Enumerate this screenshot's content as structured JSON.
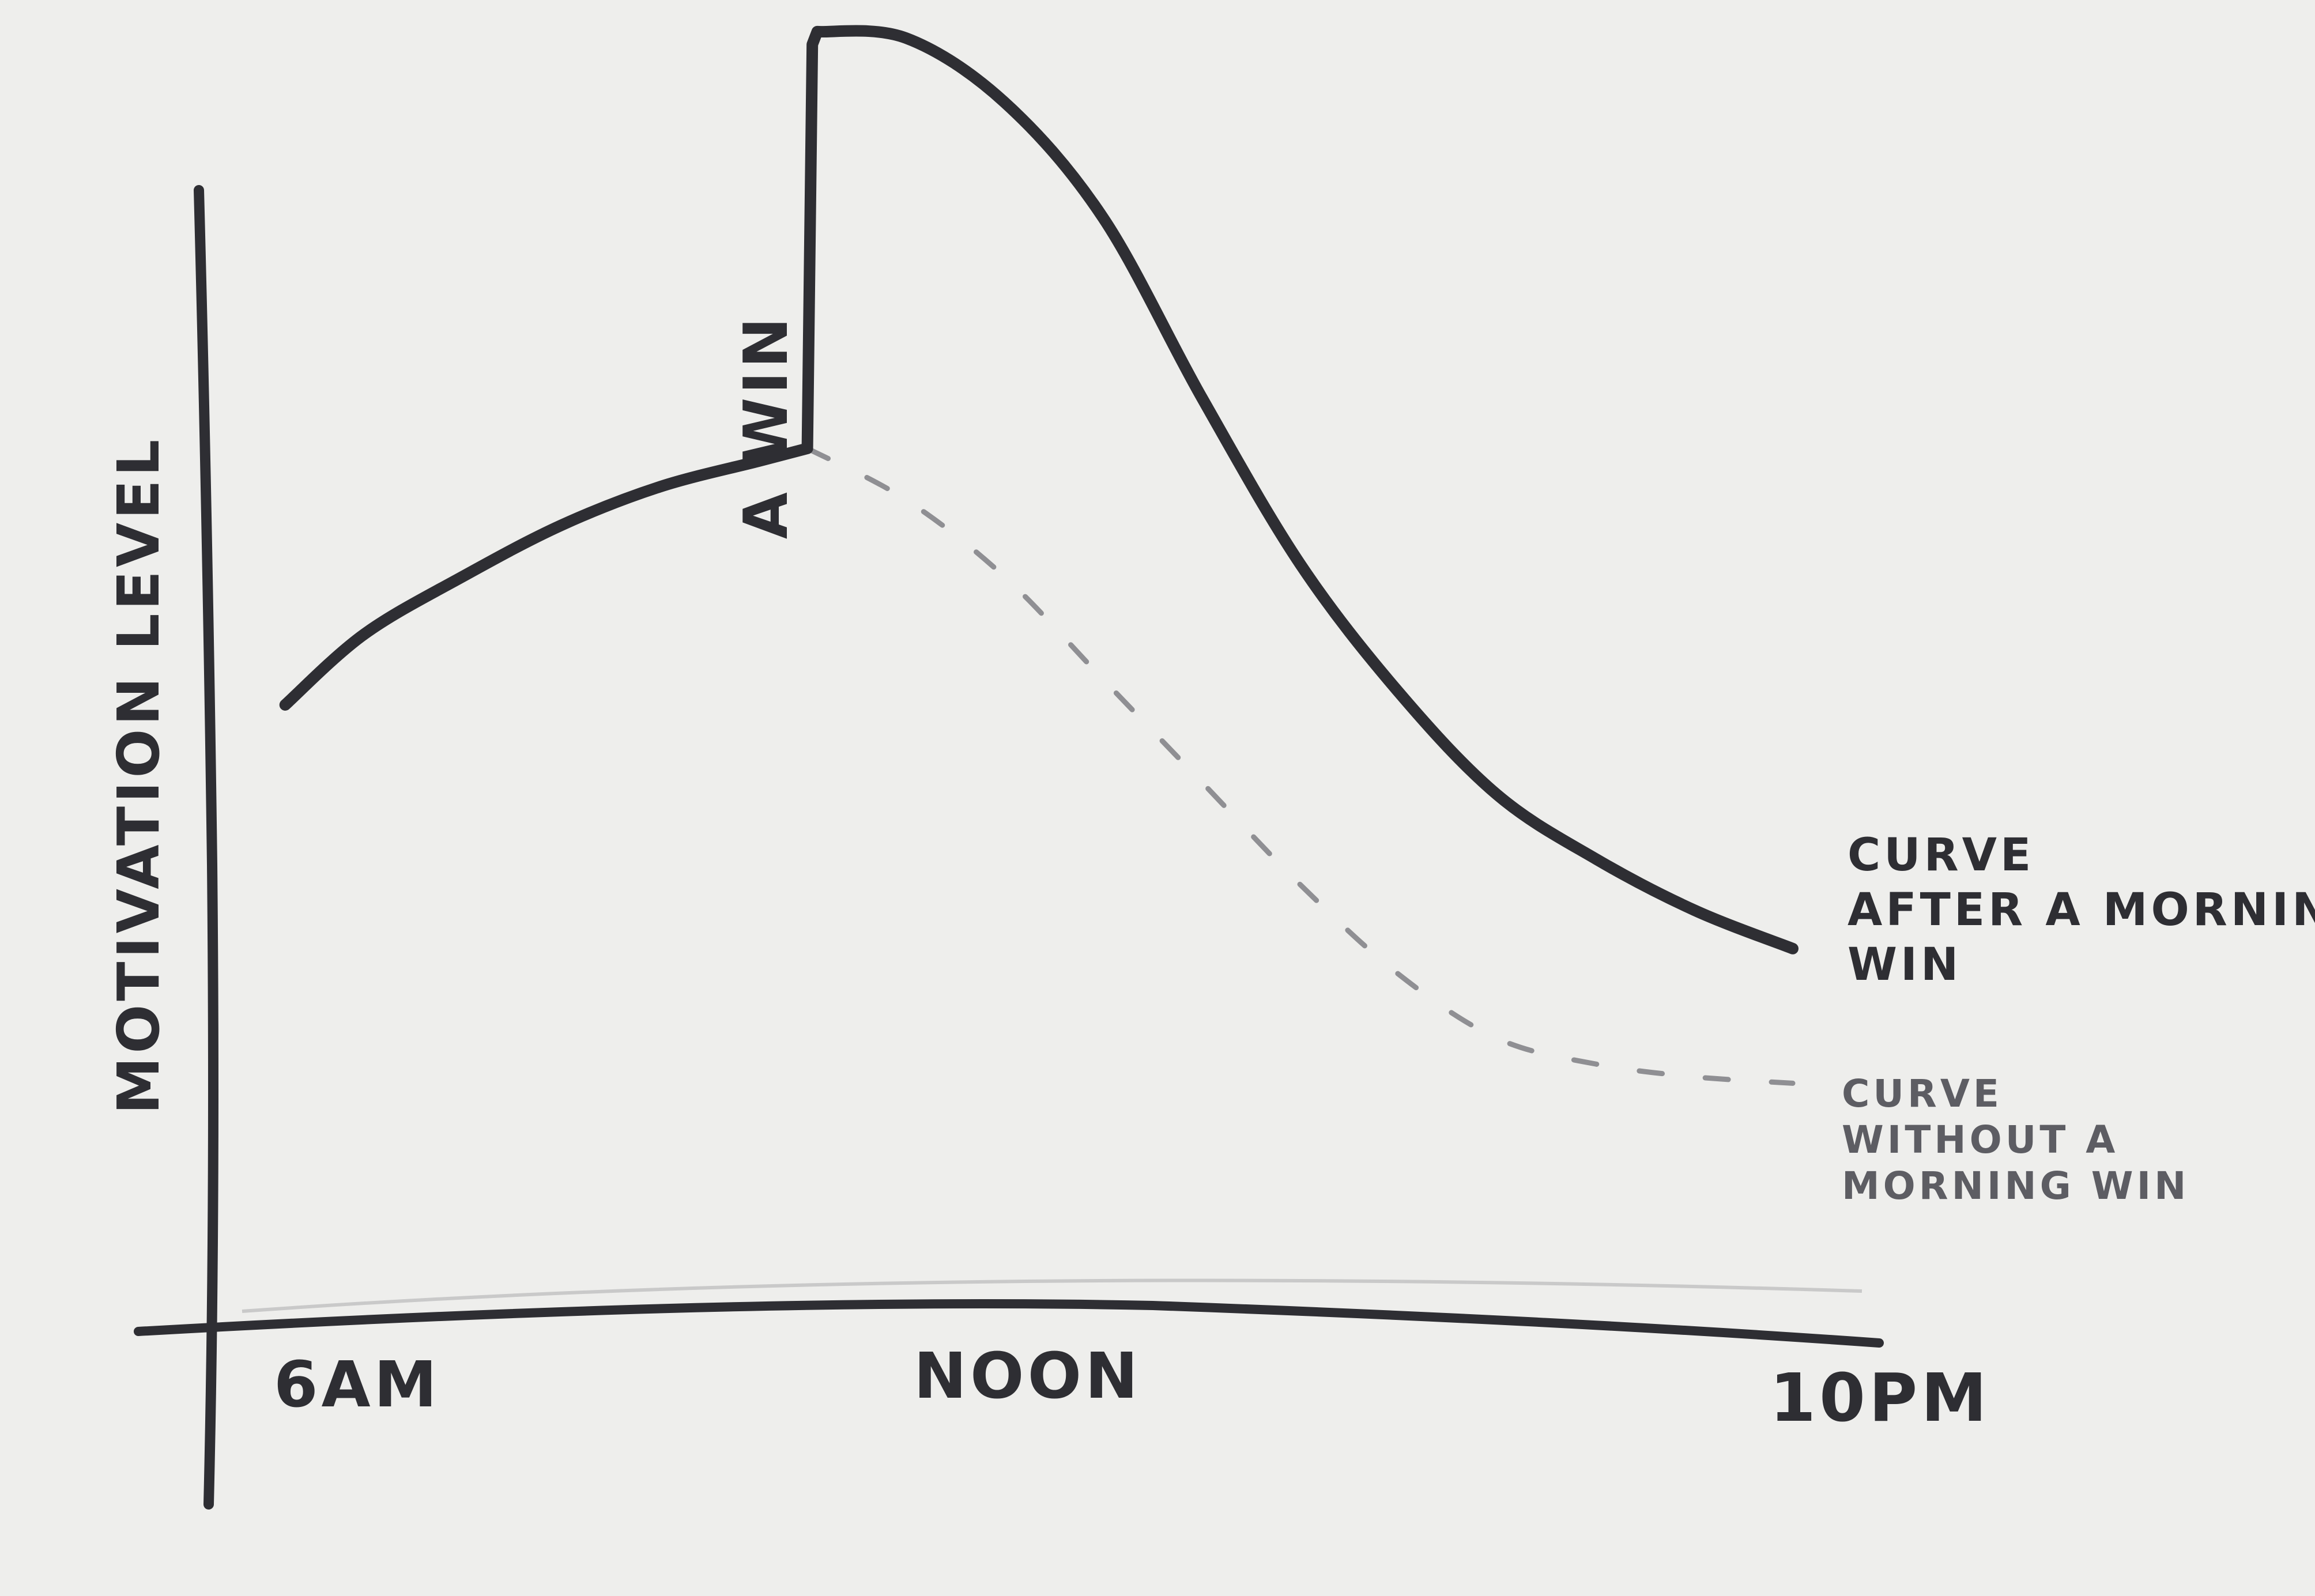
{
  "chart_data": {
    "type": "line",
    "title": "",
    "xlabel": "",
    "ylabel": "MOTIVATION LEVEL",
    "x_ticks": [
      "6AM",
      "NOON",
      "10PM"
    ],
    "x_range": [
      6,
      22
    ],
    "y_range": [
      0,
      10
    ],
    "grid": false,
    "legend": "right",
    "annotations": [
      {
        "text": "A WIN",
        "x": 12
      }
    ],
    "series": [
      {
        "name": "CURVE AFTER A MORNING WIN",
        "style": "solid",
        "color": "#2e2e33",
        "x": [
          6.7,
          7.5,
          8.5,
          9.5,
          10.5,
          11.5,
          12.0,
          12.05,
          12.1,
          13.0,
          14.0,
          15.0,
          16.0,
          17.0,
          18.0,
          19.0,
          20.0,
          21.0,
          22.0
        ],
        "y": [
          5.2,
          5.75,
          6.2,
          6.6,
          6.9,
          7.1,
          7.2,
          10.35,
          10.45,
          10.4,
          9.9,
          9.0,
          7.6,
          6.3,
          5.3,
          4.5,
          4.0,
          3.6,
          3.3
        ]
      },
      {
        "name": "CURVE WITHOUT A MORNING WIN",
        "style": "dashed",
        "color": "#8f8f93",
        "x": [
          12.0,
          13.0,
          14.0,
          15.0,
          16.0,
          17.0,
          18.0,
          19.0,
          20.0,
          21.0,
          22.0
        ],
        "y": [
          7.2,
          6.8,
          6.2,
          5.4,
          4.6,
          3.8,
          3.1,
          2.6,
          2.4,
          2.3,
          2.25
        ]
      }
    ]
  }
}
